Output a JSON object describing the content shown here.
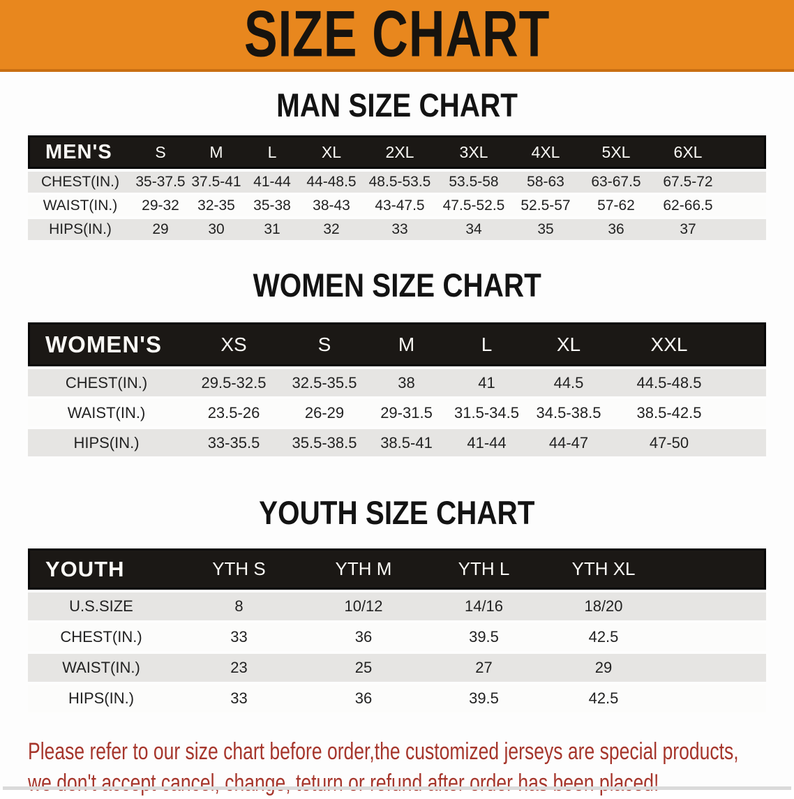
{
  "banner": {
    "title": "SIZE CHART",
    "bg_color": "#E8871E",
    "text_color": "#17130E"
  },
  "sections": [
    {
      "heading": "MAN SIZE CHART",
      "table": {
        "header_label": "MEN'S",
        "columns": [
          "S",
          "M",
          "L",
          "XL",
          "2XL",
          "3XL",
          "4XL",
          "5XL",
          "6XL"
        ],
        "rows": [
          {
            "label": "CHEST(IN.)",
            "values": [
              "35-37.5",
              "37.5-41",
              "41-44",
              "44-48.5",
              "48.5-53.5",
              "53.5-58",
              "58-63",
              "63-67.5",
              "67.5-72"
            ]
          },
          {
            "label": "WAIST(IN.)",
            "values": [
              "29-32",
              "32-35",
              "35-38",
              "38-43",
              "43-47.5",
              "47.5-52.5",
              "52.5-57",
              "57-62",
              "62-66.5"
            ]
          },
          {
            "label": "HIPS(IN.)",
            "values": [
              "29",
              "30",
              "31",
              "32",
              "33",
              "34",
              "35",
              "36",
              "37"
            ]
          }
        ]
      }
    },
    {
      "heading": "WOMEN SIZE CHART",
      "table": {
        "header_label": "WOMEN'S",
        "columns": [
          "XS",
          "S",
          "M",
          "L",
          "XL",
          "XXL"
        ],
        "rows": [
          {
            "label": "CHEST(IN.)",
            "values": [
              "29.5-32.5",
              "32.5-35.5",
              "38",
              "41",
              "44.5",
              "44.5-48.5"
            ]
          },
          {
            "label": "WAIST(IN.)",
            "values": [
              "23.5-26",
              "26-29",
              "29-31.5",
              "31.5-34.5",
              "34.5-38.5",
              "38.5-42.5"
            ]
          },
          {
            "label": "HIPS(IN.)",
            "values": [
              "33-35.5",
              "35.5-38.5",
              "38.5-41",
              "41-44",
              "44-47",
              "47-50"
            ]
          }
        ]
      }
    },
    {
      "heading": "YOUTH SIZE CHART",
      "table": {
        "header_label": "YOUTH",
        "columns": [
          "YTH S",
          "YTH M",
          "YTH L",
          "YTH XL"
        ],
        "rows": [
          {
            "label": "U.S.SIZE",
            "values": [
              "8",
              "10/12",
              "14/16",
              "18/20"
            ]
          },
          {
            "label": "CHEST(IN.)",
            "values": [
              "33",
              "36",
              "39.5",
              "42.5"
            ]
          },
          {
            "label": "WAIST(IN.)",
            "values": [
              "23",
              "25",
              "27",
              "29"
            ]
          },
          {
            "label": "HIPS(IN.)",
            "values": [
              "33",
              "36",
              "39.5",
              "42.5"
            ]
          }
        ]
      }
    }
  ],
  "disclaimer": {
    "line1": "Please refer to our size chart before order,the customized jerseys are special products,",
    "line2": "we don't accept cancel, change, teturn or refund after order has been placed!",
    "color": "#A6362C"
  }
}
